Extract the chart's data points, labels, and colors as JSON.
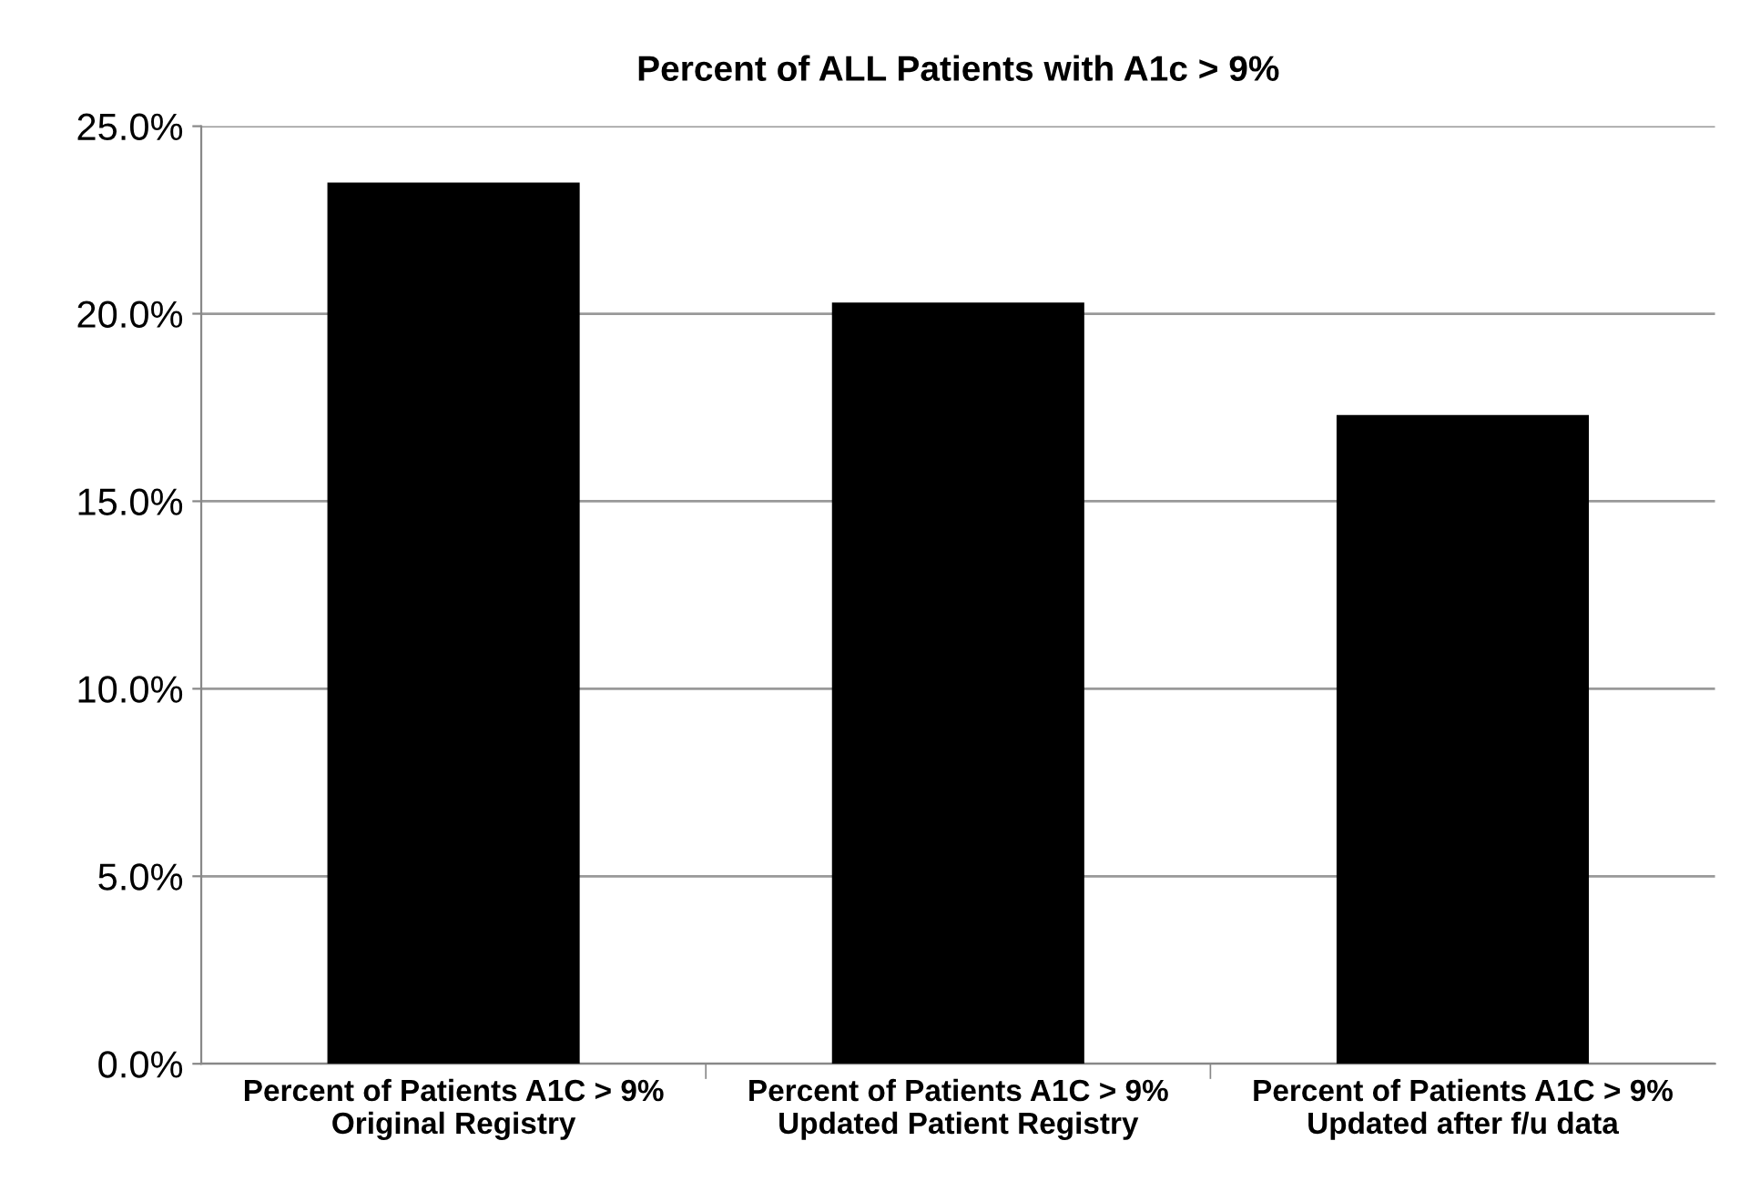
{
  "chart_data": {
    "type": "bar",
    "title": "Percent of ALL Patients with A1c > 9%",
    "categories": [
      "Percent of Patients A1C > 9%\nOriginal Registry",
      "Percent of Patients A1C > 9%\nUpdated Patient Registry",
      "Percent of Patients A1C > 9%\nUpdated after f/u data"
    ],
    "values": [
      23.5,
      20.3,
      17.3
    ],
    "color": "#000000",
    "ylim": [
      0,
      25
    ],
    "yticks": [
      {
        "value": 0,
        "label": "0.0%"
      },
      {
        "value": 5,
        "label": "5.0%"
      },
      {
        "value": 10,
        "label": "10.0%"
      },
      {
        "value": 15,
        "label": "15.0%"
      },
      {
        "value": 20,
        "label": "20.0%"
      },
      {
        "value": 25,
        "label": "25.0%"
      }
    ],
    "grid": "y"
  }
}
